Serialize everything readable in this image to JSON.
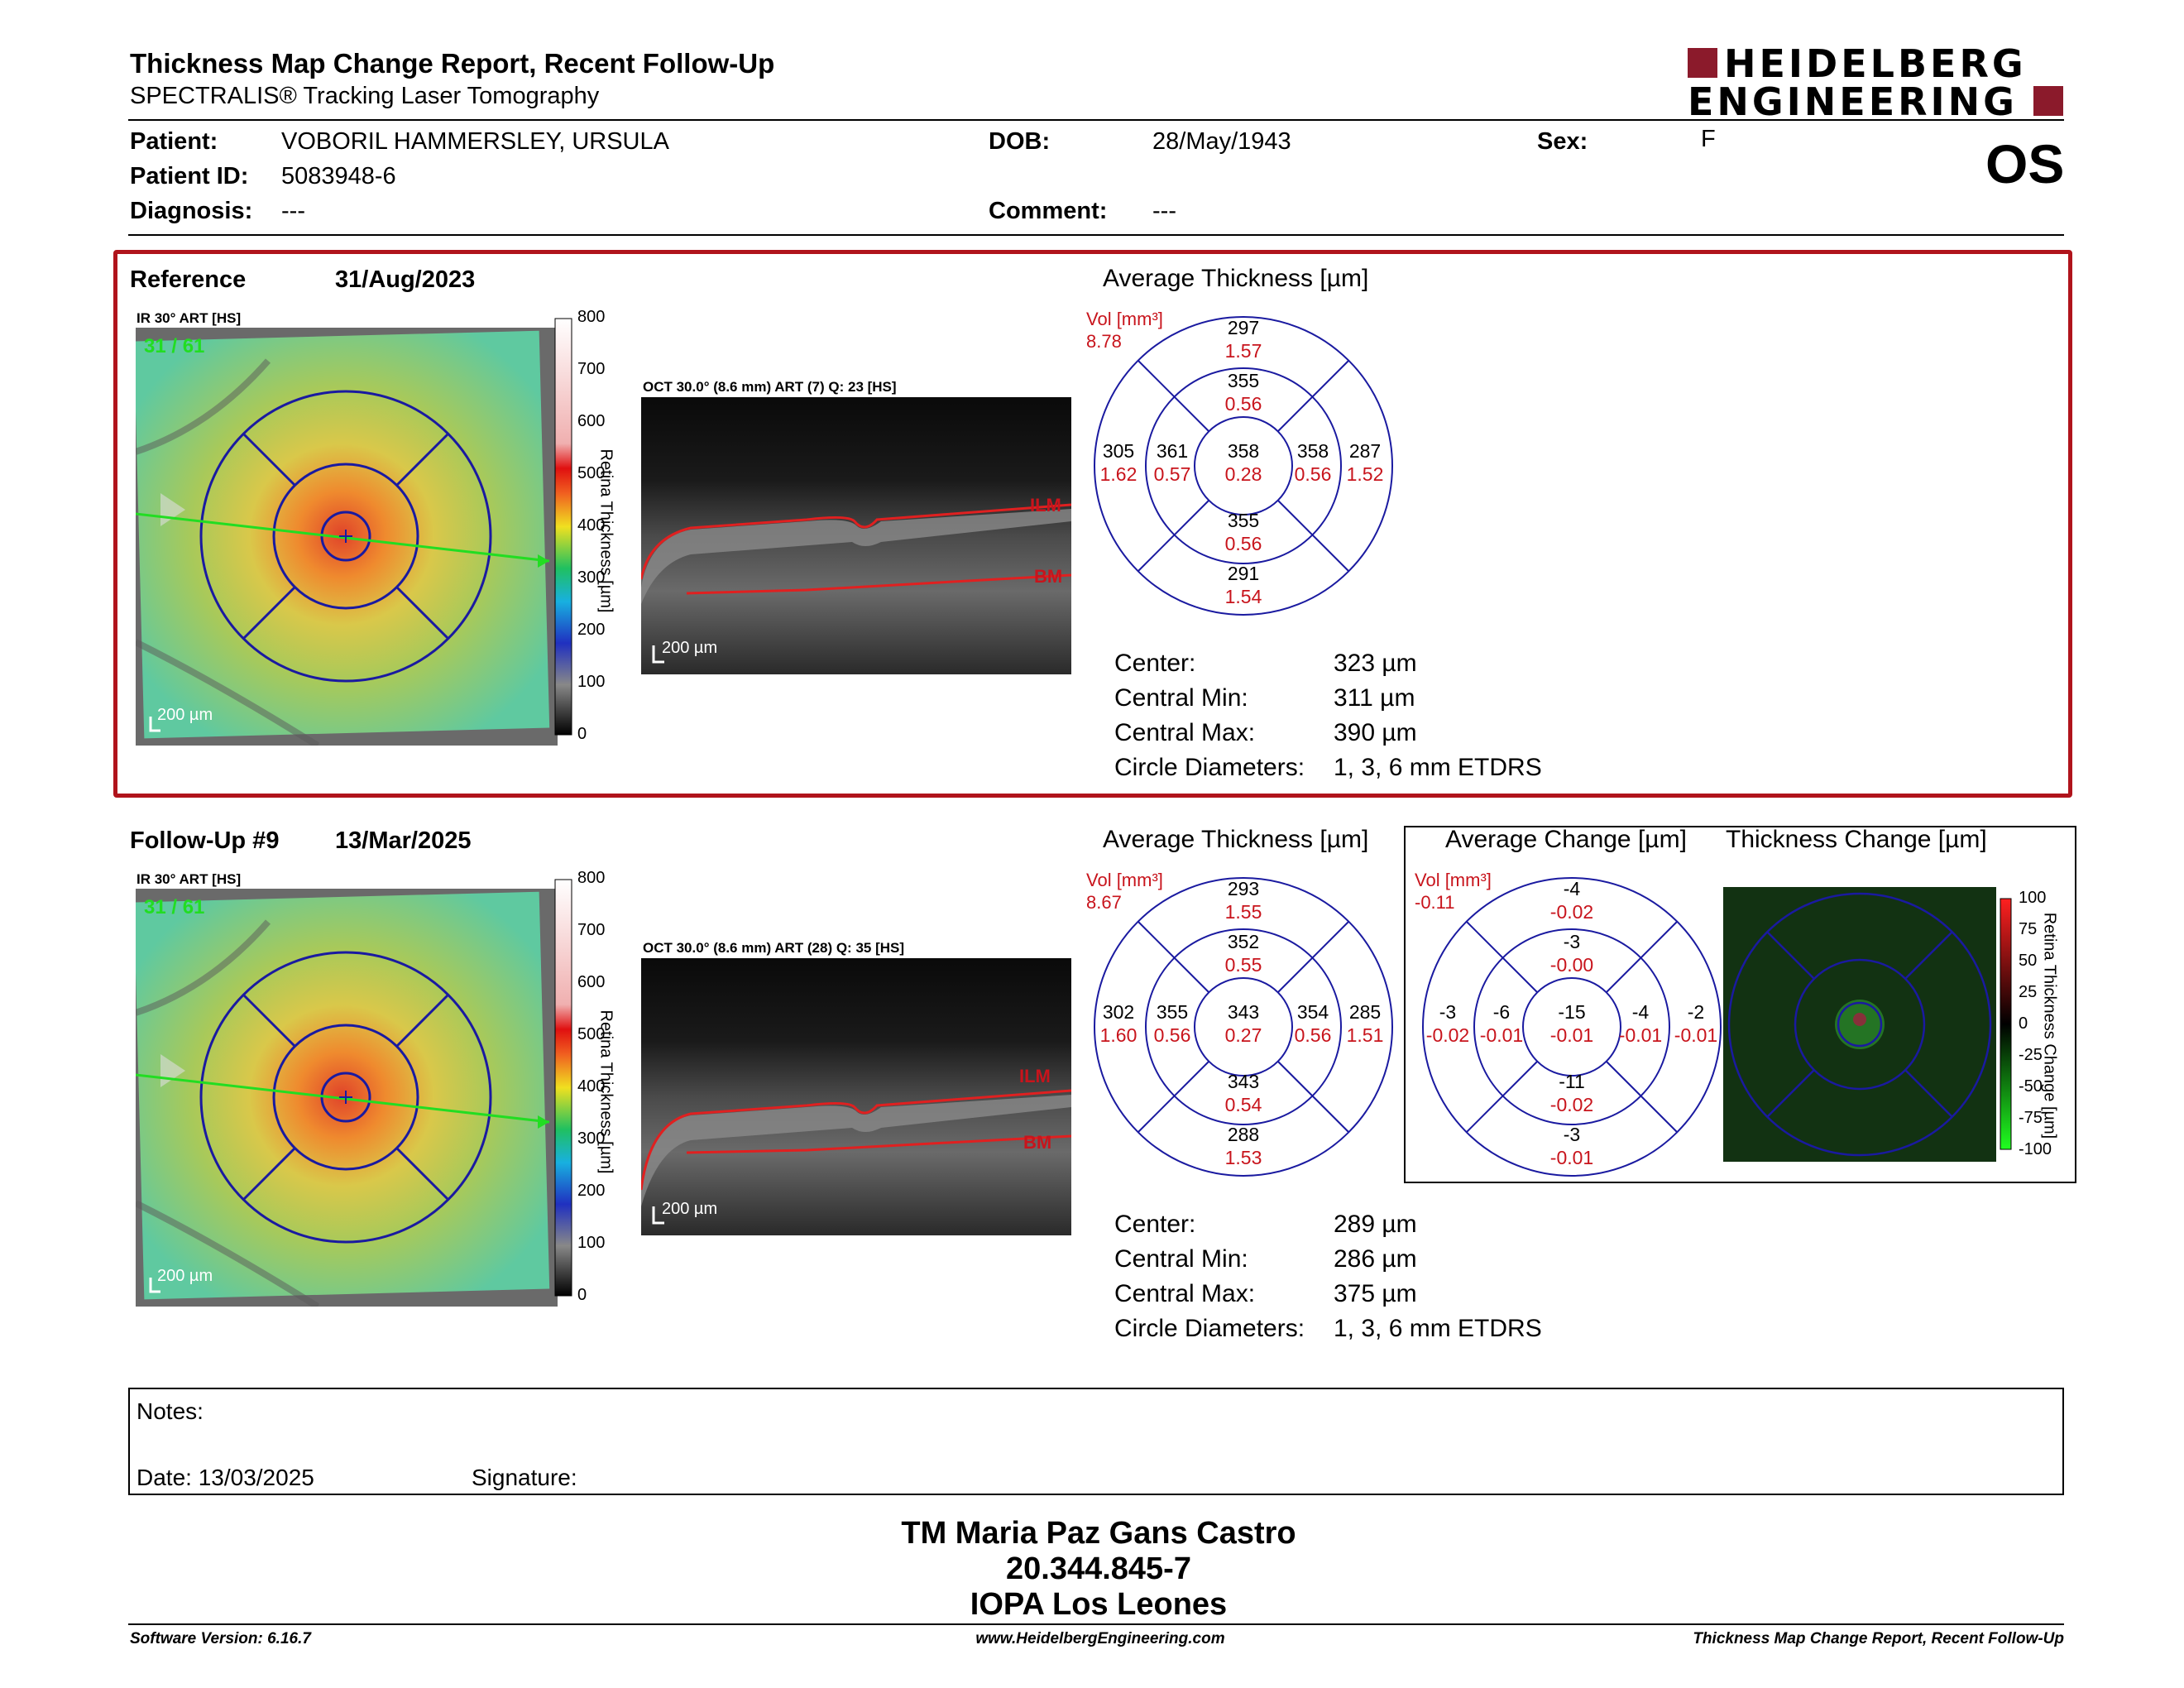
{
  "header": {
    "title": "Thickness Map Change Report, Recent Follow-Up",
    "subtitle": "SPECTRALIS® Tracking Laser Tomography",
    "logo_line1": "HEIDELBERG",
    "logo_line2": "ENGINEERING",
    "eye": "OS"
  },
  "patient": {
    "patient_label": "Patient:",
    "patient_value": "VOBORIL HAMMERSLEY, URSULA",
    "id_label": "Patient ID:",
    "id_value": "5083948-6",
    "diagnosis_label": "Diagnosis:",
    "diagnosis_value": "---",
    "dob_label": "DOB:",
    "dob_value": "28/May/1943",
    "comment_label": "Comment:",
    "comment_value": "---",
    "sex_label": "Sex:",
    "sex_value": "F"
  },
  "colors": {
    "accent_red": "#b0141c",
    "etdrs_blue": "#1a1aa0",
    "value_red": "#c8141c",
    "logo": "#8b1a2b"
  },
  "scale": {
    "ticks": [
      "800",
      "700",
      "600",
      "500",
      "400",
      "300",
      "200",
      "100",
      "0"
    ],
    "axis_label": "Retina Thickness [µm]",
    "change_ticks": [
      "100",
      "75",
      "50",
      "25",
      "0",
      "-25",
      "-50",
      "-75",
      "-100"
    ],
    "change_axis_label": "Retina Thickness Change [µm]"
  },
  "reference": {
    "label": "Reference",
    "date": "31/Aug/2023",
    "ir_label": "IR 30° ART [HS]",
    "frame": "31 / 61",
    "ir_scale": "200 µm",
    "oct_label": "OCT 30.0° (8.6 mm) ART (7) Q: 23 [HS]",
    "oct_scale": "200 µm",
    "ilm": "ILM",
    "bm": "BM",
    "avg_title": "Average Thickness [µm]",
    "vol_label": "Vol [mm³]",
    "vol_value": "8.78",
    "sectors": {
      "outer_top": [
        "297",
        "1.57"
      ],
      "inner_top": [
        "355",
        "0.56"
      ],
      "outer_left": [
        "305",
        "1.62"
      ],
      "inner_left": [
        "361",
        "0.57"
      ],
      "center": [
        "358",
        "0.28"
      ],
      "inner_right": [
        "358",
        "0.56"
      ],
      "outer_right": [
        "287",
        "1.52"
      ],
      "inner_bottom": [
        "355",
        "0.56"
      ],
      "outer_bottom": [
        "291",
        "1.54"
      ]
    },
    "stats": {
      "center_label": "Center:",
      "center": "323 µm",
      "min_label": "Central Min:",
      "min": "311 µm",
      "max_label": "Central Max:",
      "max": "390 µm",
      "diam_label": "Circle Diameters:",
      "diam": "1, 3, 6 mm ETDRS"
    }
  },
  "followup": {
    "label": "Follow-Up #9",
    "date": "13/Mar/2025",
    "ir_label": "IR 30° ART [HS]",
    "frame": "31 / 61",
    "ir_scale": "200 µm",
    "oct_label": "OCT 30.0° (8.6 mm) ART (28) Q: 35 [HS]",
    "oct_scale": "200 µm",
    "ilm": "ILM",
    "bm": "BM",
    "avg_title": "Average Thickness [µm]",
    "vol_label": "Vol [mm³]",
    "vol_value": "8.67",
    "sectors": {
      "outer_top": [
        "293",
        "1.55"
      ],
      "inner_top": [
        "352",
        "0.55"
      ],
      "outer_left": [
        "302",
        "1.60"
      ],
      "inner_left": [
        "355",
        "0.56"
      ],
      "center": [
        "343",
        "0.27"
      ],
      "inner_right": [
        "354",
        "0.56"
      ],
      "outer_right": [
        "285",
        "1.51"
      ],
      "inner_bottom": [
        "343",
        "0.54"
      ],
      "outer_bottom": [
        "288",
        "1.53"
      ]
    },
    "stats": {
      "center_label": "Center:",
      "center": "289 µm",
      "min_label": "Central Min:",
      "min": "286 µm",
      "max_label": "Central Max:",
      "max": "375 µm",
      "diam_label": "Circle Diameters:",
      "diam": "1, 3, 6 mm ETDRS"
    },
    "change_title": "Average Change [µm]",
    "thick_change_title": "Thickness Change [µm]",
    "change_vol_label": "Vol [mm³]",
    "change_vol_value": "-0.11",
    "change_sectors": {
      "outer_top": [
        "-4",
        "-0.02"
      ],
      "inner_top": [
        "-3",
        "-0.00"
      ],
      "outer_left": [
        "-3",
        "-0.02"
      ],
      "inner_left": [
        "-6",
        "-0.01"
      ],
      "center": [
        "-15",
        "-0.01"
      ],
      "inner_right": [
        "-4",
        "-0.01"
      ],
      "outer_right": [
        "-2",
        "-0.01"
      ],
      "inner_bottom": [
        "-11",
        "-0.02"
      ],
      "outer_bottom": [
        "-3",
        "-0.01"
      ]
    }
  },
  "notes": {
    "notes_label": "Notes:",
    "date_label": "Date: 13/03/2025",
    "signature_label": "Signature:"
  },
  "signoff": {
    "name": "TM Maria Paz Gans Castro",
    "id": "20.344.845-7",
    "org": "IOPA Los Leones"
  },
  "footer": {
    "left": "Software Version: 6.16.7",
    "center": "www.HeidelbergEngineering.com",
    "right": "Thickness Map Change Report, Recent Follow-Up"
  }
}
